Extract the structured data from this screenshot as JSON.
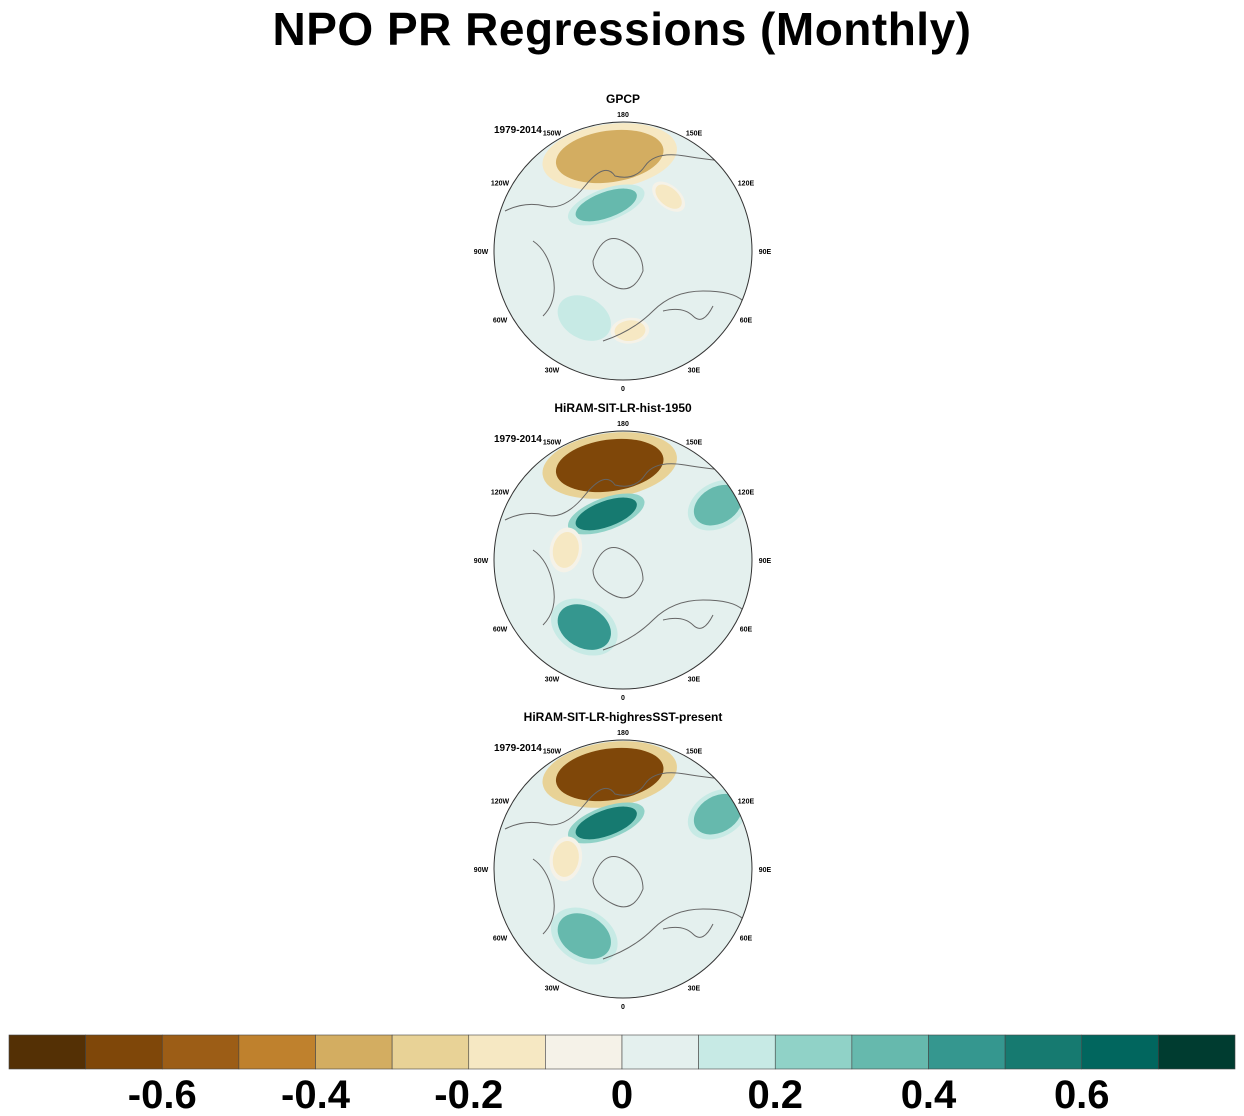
{
  "title": "NPO PR Regressions (Monthly)",
  "chart_data": [
    {
      "type": "map",
      "projection": "north-polar-stereographic",
      "title": "GPCP",
      "period": "1979-2014",
      "longitude_labels": [
        "180",
        "150E",
        "120E",
        "90E",
        "60E",
        "30E",
        "0",
        "30W",
        "60W",
        "90W",
        "120W",
        "150W"
      ],
      "features": [
        {
          "name": "north-pacific-dry-lobe",
          "value": -0.4
        },
        {
          "name": "bering-sea-wet-band",
          "value": 0.3
        },
        {
          "name": "north-atlantic-wet-patch",
          "value": 0.15
        },
        {
          "name": "europe-dry-patch",
          "value": -0.2
        },
        {
          "name": "siberia-dry-patch",
          "value": -0.2
        },
        {
          "name": "background",
          "value": 0.05
        }
      ]
    },
    {
      "type": "map",
      "projection": "north-polar-stereographic",
      "title": "HiRAM-SIT-LR-hist-1950",
      "period": "1979-2014",
      "longitude_labels": [
        "180",
        "150E",
        "120E",
        "90E",
        "60E",
        "30E",
        "0",
        "30W",
        "60W",
        "90W",
        "120W",
        "150W"
      ],
      "features": [
        {
          "name": "north-pacific-dry-lobe",
          "value": -0.7
        },
        {
          "name": "bering-sea-wet-band",
          "value": 0.5
        },
        {
          "name": "north-atlantic-wet-patch",
          "value": 0.4
        },
        {
          "name": "east-asia-wet-patch",
          "value": 0.3
        },
        {
          "name": "canada-dry-patch",
          "value": -0.2
        },
        {
          "name": "background",
          "value": 0.05
        }
      ]
    },
    {
      "type": "map",
      "projection": "north-polar-stereographic",
      "title": "HiRAM-SIT-LR-highresSST-present",
      "period": "1979-2014",
      "longitude_labels": [
        "180",
        "150E",
        "120E",
        "90E",
        "60E",
        "30E",
        "0",
        "30W",
        "60W",
        "90W",
        "120W",
        "150W"
      ],
      "features": [
        {
          "name": "north-pacific-dry-lobe",
          "value": -0.7
        },
        {
          "name": "bering-sea-wet-band",
          "value": 0.5
        },
        {
          "name": "north-atlantic-wet-patch",
          "value": 0.35
        },
        {
          "name": "east-asia-wet-patch",
          "value": 0.3
        },
        {
          "name": "canada-dry-patch",
          "value": -0.2
        },
        {
          "name": "background",
          "value": 0.05
        }
      ]
    }
  ],
  "colorbar": {
    "levels": [
      -0.7,
      -0.6,
      -0.5,
      -0.4,
      -0.3,
      -0.2,
      -0.1,
      0,
      0.1,
      0.2,
      0.3,
      0.4,
      0.5,
      0.6,
      0.7
    ],
    "colors": [
      "#543005",
      "#7f4709",
      "#9c5d16",
      "#bf812d",
      "#d3ad61",
      "#e8d296",
      "#f6e8c3",
      "#f5f2e8",
      "#e4f0ee",
      "#c7eae5",
      "#90d2c7",
      "#66b9ad",
      "#35978f",
      "#167a70",
      "#01665e",
      "#003c30"
    ],
    "labels": [
      "-0.6",
      "-0.4",
      "-0.2",
      "0",
      "0.2",
      "0.4",
      "0.6"
    ]
  }
}
